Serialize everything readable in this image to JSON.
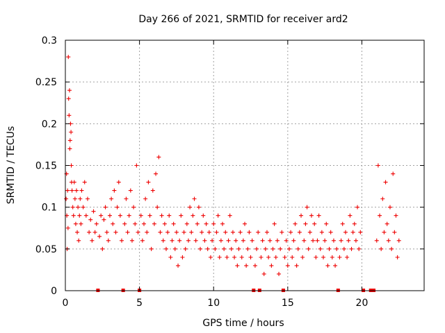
{
  "chart_data": {
    "type": "scatter",
    "title": "Day 266 of 2021, SRMTID for receiver ard2",
    "xlabel": "GPS time / hours",
    "ylabel": "SRMTID / TECUs",
    "xlim": [
      0,
      24.2
    ],
    "ylim": [
      0,
      0.3
    ],
    "x_ticks": [
      0,
      5,
      10,
      15,
      20
    ],
    "x_tick_labels": [
      "0",
      "5",
      "10",
      "15",
      "20"
    ],
    "y_ticks": [
      0,
      0.05,
      0.1,
      0.15,
      0.2,
      0.25,
      0.3
    ],
    "y_tick_labels": [
      "0",
      "0.05",
      "0.1",
      "0.15",
      "0.2",
      "0.25",
      "0.3"
    ],
    "grid": true,
    "marker": "+",
    "color": "#ee0000",
    "data_gaps_at_zero_hours": [
      2.2,
      3.9,
      5.0,
      12.7,
      13.1,
      14.7,
      18.4,
      20.1,
      20.6,
      20.8
    ],
    "series": [
      {
        "name": "SRMTID",
        "points": [
          [
            0.05,
            0.11
          ],
          [
            0.08,
            0.14
          ],
          [
            0.1,
            0.09
          ],
          [
            0.12,
            0.05
          ],
          [
            0.15,
            0.12
          ],
          [
            0.18,
            0.075
          ],
          [
            0.2,
            0.28
          ],
          [
            0.22,
            0.23
          ],
          [
            0.25,
            0.21
          ],
          [
            0.28,
            0.24
          ],
          [
            0.3,
            0.17
          ],
          [
            0.32,
            0.18
          ],
          [
            0.35,
            0.2
          ],
          [
            0.38,
            0.19
          ],
          [
            0.4,
            0.15
          ],
          [
            0.42,
            0.13
          ],
          [
            0.45,
            0.12
          ],
          [
            0.5,
            0.1
          ],
          [
            0.55,
            0.09
          ],
          [
            0.6,
            0.13
          ],
          [
            0.65,
            0.11
          ],
          [
            0.7,
            0.08
          ],
          [
            0.75,
            0.12
          ],
          [
            0.8,
            0.07
          ],
          [
            0.85,
            0.1
          ],
          [
            0.9,
            0.06
          ],
          [
            0.95,
            0.09
          ],
          [
            1.0,
            0.11
          ],
          [
            1.05,
            0.08
          ],
          [
            1.1,
            0.12
          ],
          [
            1.2,
            0.1
          ],
          [
            1.3,
            0.13
          ],
          [
            1.4,
            0.09
          ],
          [
            1.5,
            0.11
          ],
          [
            1.6,
            0.07
          ],
          [
            1.7,
            0.085
          ],
          [
            1.8,
            0.06
          ],
          [
            1.9,
            0.095
          ],
          [
            2.0,
            0.07
          ],
          [
            2.1,
            0.08
          ],
          [
            2.3,
            0.065
          ],
          [
            2.4,
            0.09
          ],
          [
            2.5,
            0.05
          ],
          [
            2.6,
            0.085
          ],
          [
            2.7,
            0.1
          ],
          [
            2.8,
            0.07
          ],
          [
            2.9,
            0.06
          ],
          [
            3.0,
            0.09
          ],
          [
            3.1,
            0.11
          ],
          [
            3.2,
            0.08
          ],
          [
            3.3,
            0.12
          ],
          [
            3.4,
            0.07
          ],
          [
            3.5,
            0.1
          ],
          [
            3.6,
            0.13
          ],
          [
            3.7,
            0.09
          ],
          [
            3.8,
            0.06
          ],
          [
            4.0,
            0.08
          ],
          [
            4.1,
            0.11
          ],
          [
            4.2,
            0.07
          ],
          [
            4.3,
            0.09
          ],
          [
            4.4,
            0.12
          ],
          [
            4.5,
            0.06
          ],
          [
            4.6,
            0.1
          ],
          [
            4.7,
            0.08
          ],
          [
            4.8,
            0.15
          ],
          [
            4.9,
            0.07
          ],
          [
            5.1,
            0.09
          ],
          [
            5.2,
            0.06
          ],
          [
            5.3,
            0.08
          ],
          [
            5.4,
            0.11
          ],
          [
            5.5,
            0.07
          ],
          [
            5.6,
            0.13
          ],
          [
            5.7,
            0.09
          ],
          [
            5.8,
            0.05
          ],
          [
            5.9,
            0.12
          ],
          [
            6.0,
            0.08
          ],
          [
            6.1,
            0.14
          ],
          [
            6.2,
            0.1
          ],
          [
            6.3,
            0.16
          ],
          [
            6.4,
            0.07
          ],
          [
            6.5,
            0.09
          ],
          [
            6.6,
            0.06
          ],
          [
            6.7,
            0.08
          ],
          [
            6.8,
            0.05
          ],
          [
            6.9,
            0.07
          ],
          [
            7.0,
            0.09
          ],
          [
            7.1,
            0.04
          ],
          [
            7.2,
            0.06
          ],
          [
            7.3,
            0.08
          ],
          [
            7.4,
            0.05
          ],
          [
            7.5,
            0.07
          ],
          [
            7.6,
            0.03
          ],
          [
            7.7,
            0.06
          ],
          [
            7.8,
            0.09
          ],
          [
            7.9,
            0.04
          ],
          [
            8.0,
            0.07
          ],
          [
            8.1,
            0.05
          ],
          [
            8.2,
            0.08
          ],
          [
            8.3,
            0.06
          ],
          [
            8.4,
            0.1
          ],
          [
            8.5,
            0.07
          ],
          [
            8.6,
            0.09
          ],
          [
            8.7,
            0.11
          ],
          [
            8.8,
            0.06
          ],
          [
            8.9,
            0.08
          ],
          [
            9.0,
            0.1
          ],
          [
            9.1,
            0.05
          ],
          [
            9.2,
            0.07
          ],
          [
            9.3,
            0.09
          ],
          [
            9.4,
            0.06
          ],
          [
            9.5,
            0.08
          ],
          [
            9.6,
            0.05
          ],
          [
            9.7,
            0.07
          ],
          [
            9.8,
            0.04
          ],
          [
            9.9,
            0.06
          ],
          [
            10.0,
            0.08
          ],
          [
            10.1,
            0.05
          ],
          [
            10.2,
            0.07
          ],
          [
            10.3,
            0.09
          ],
          [
            10.4,
            0.04
          ],
          [
            10.5,
            0.06
          ],
          [
            10.6,
            0.08
          ],
          [
            10.7,
            0.05
          ],
          [
            10.8,
            0.07
          ],
          [
            10.9,
            0.04
          ],
          [
            11.0,
            0.06
          ],
          [
            11.1,
            0.09
          ],
          [
            11.2,
            0.05
          ],
          [
            11.3,
            0.07
          ],
          [
            11.4,
            0.04
          ],
          [
            11.5,
            0.06
          ],
          [
            11.6,
            0.03
          ],
          [
            11.7,
            0.05
          ],
          [
            11.8,
            0.07
          ],
          [
            11.9,
            0.04
          ],
          [
            12.0,
            0.06
          ],
          [
            12.1,
            0.08
          ],
          [
            12.2,
            0.03
          ],
          [
            12.3,
            0.05
          ],
          [
            12.4,
            0.07
          ],
          [
            12.5,
            0.04
          ],
          [
            12.6,
            0.06
          ],
          [
            12.8,
            0.03
          ],
          [
            12.9,
            0.05
          ],
          [
            13.0,
            0.07
          ],
          [
            13.2,
            0.04
          ],
          [
            13.3,
            0.06
          ],
          [
            13.4,
            0.02
          ],
          [
            13.5,
            0.05
          ],
          [
            13.6,
            0.07
          ],
          [
            13.7,
            0.04
          ],
          [
            13.8,
            0.06
          ],
          [
            13.9,
            0.03
          ],
          [
            14.0,
            0.05
          ],
          [
            14.1,
            0.08
          ],
          [
            14.2,
            0.04
          ],
          [
            14.3,
            0.06
          ],
          [
            14.4,
            0.02
          ],
          [
            14.5,
            0.05
          ],
          [
            14.6,
            0.07
          ],
          [
            14.8,
            0.04
          ],
          [
            14.9,
            0.06
          ],
          [
            15.0,
            0.03
          ],
          [
            15.1,
            0.05
          ],
          [
            15.2,
            0.07
          ],
          [
            15.3,
            0.04
          ],
          [
            15.4,
            0.06
          ],
          [
            15.5,
            0.08
          ],
          [
            15.6,
            0.03
          ],
          [
            15.7,
            0.05
          ],
          [
            15.8,
            0.07
          ],
          [
            15.9,
            0.09
          ],
          [
            16.0,
            0.04
          ],
          [
            16.1,
            0.06
          ],
          [
            16.2,
            0.08
          ],
          [
            16.3,
            0.1
          ],
          [
            16.4,
            0.05
          ],
          [
            16.5,
            0.07
          ],
          [
            16.6,
            0.09
          ],
          [
            16.7,
            0.06
          ],
          [
            16.8,
            0.08
          ],
          [
            16.9,
            0.04
          ],
          [
            17.0,
            0.06
          ],
          [
            17.1,
            0.09
          ],
          [
            17.2,
            0.05
          ],
          [
            17.3,
            0.07
          ],
          [
            17.4,
            0.04
          ],
          [
            17.5,
            0.06
          ],
          [
            17.6,
            0.08
          ],
          [
            17.7,
            0.03
          ],
          [
            17.8,
            0.05
          ],
          [
            17.9,
            0.07
          ],
          [
            18.0,
            0.04
          ],
          [
            18.1,
            0.06
          ],
          [
            18.2,
            0.03
          ],
          [
            18.3,
            0.05
          ],
          [
            18.5,
            0.04
          ],
          [
            18.6,
            0.06
          ],
          [
            18.7,
            0.08
          ],
          [
            18.8,
            0.05
          ],
          [
            18.9,
            0.07
          ],
          [
            19.0,
            0.04
          ],
          [
            19.1,
            0.06
          ],
          [
            19.2,
            0.09
          ],
          [
            19.3,
            0.05
          ],
          [
            19.4,
            0.07
          ],
          [
            19.5,
            0.08
          ],
          [
            19.6,
            0.06
          ],
          [
            19.7,
            0.1
          ],
          [
            19.8,
            0.05
          ],
          [
            19.9,
            0.07
          ],
          [
            21.0,
            0.06
          ],
          [
            21.1,
            0.15
          ],
          [
            21.2,
            0.09
          ],
          [
            21.3,
            0.05
          ],
          [
            21.4,
            0.11
          ],
          [
            21.5,
            0.07
          ],
          [
            21.6,
            0.13
          ],
          [
            21.7,
            0.08
          ],
          [
            21.8,
            0.06
          ],
          [
            21.9,
            0.1
          ],
          [
            22.0,
            0.05
          ],
          [
            22.1,
            0.14
          ],
          [
            22.2,
            0.07
          ],
          [
            22.3,
            0.09
          ],
          [
            22.4,
            0.04
          ],
          [
            22.5,
            0.06
          ]
        ]
      }
    ]
  }
}
